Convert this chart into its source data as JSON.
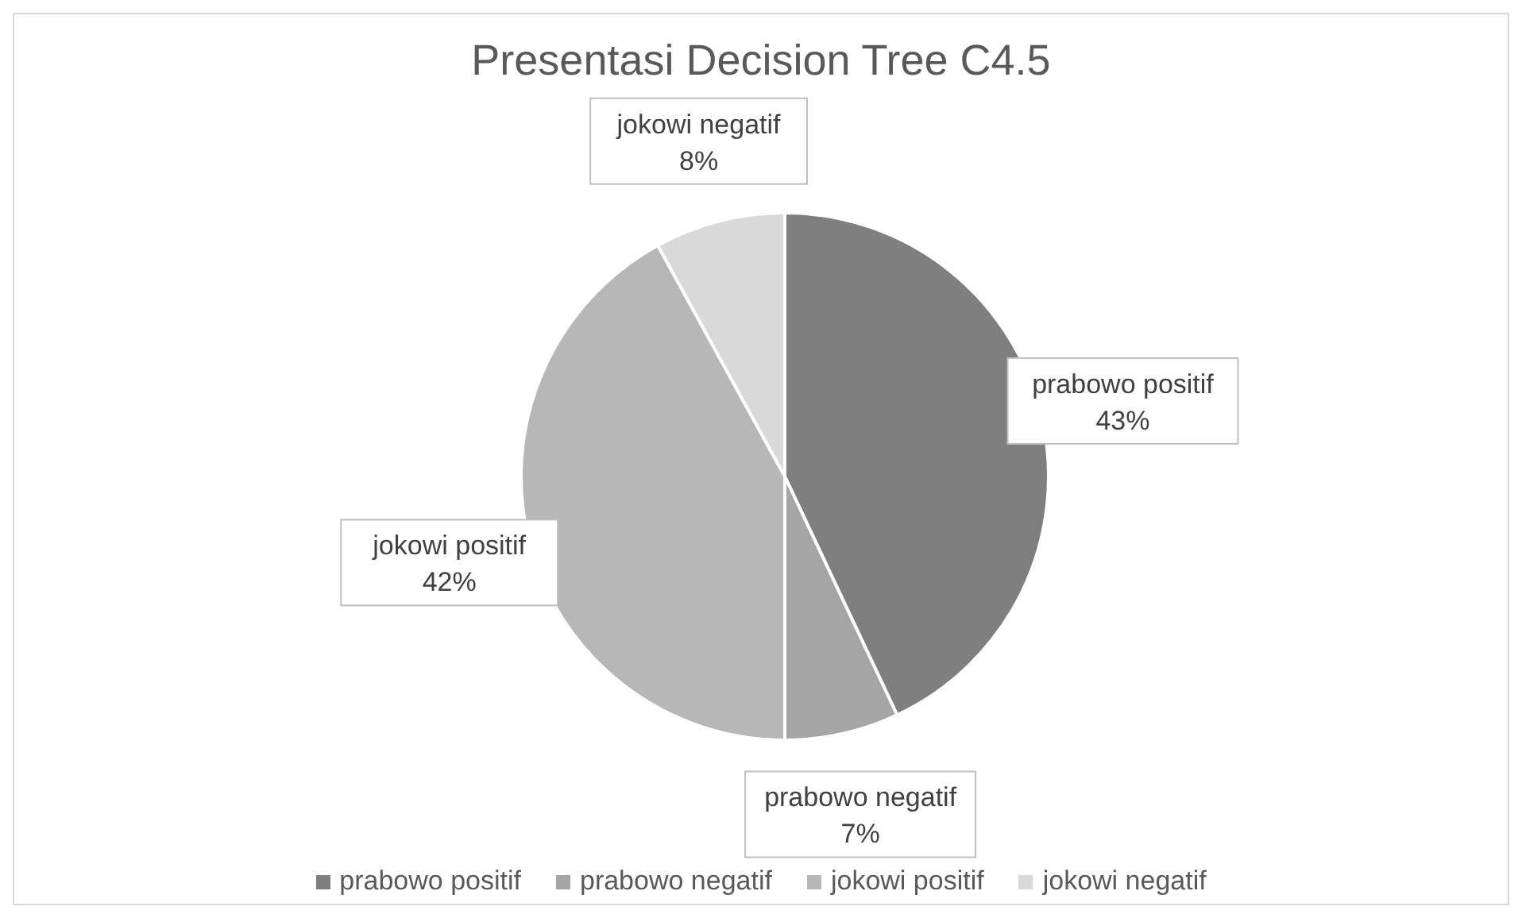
{
  "chart_data": {
    "type": "pie",
    "title": "Presentasi Decision Tree C4.5",
    "categories": [
      "prabowo positif",
      "prabowo negatif",
      "jokowi positif",
      "jokowi negatif"
    ],
    "values": [
      43,
      7,
      42,
      8
    ],
    "colors": [
      "#7f7f7f",
      "#a5a5a5",
      "#b7b7b7",
      "#d9d9d9"
    ],
    "value_labels": [
      "43%",
      "7%",
      "42%",
      "8%"
    ],
    "legend": "bottom"
  }
}
